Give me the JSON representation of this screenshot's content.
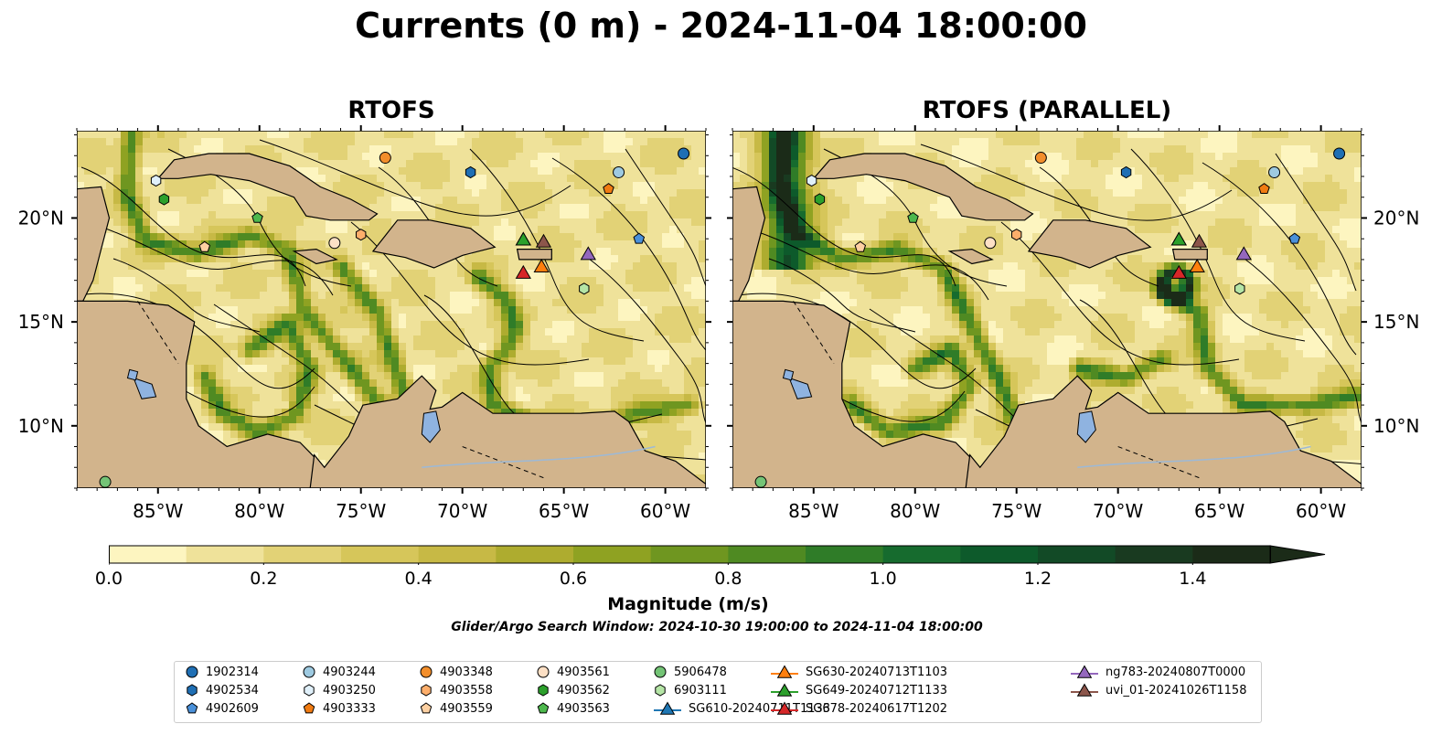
{
  "title": "Currents (0 m) - 2024-11-04 18:00:00",
  "panels": [
    {
      "id": "left",
      "title": "RTOFS"
    },
    {
      "id": "right",
      "title": "RTOFS (PARALLEL)"
    }
  ],
  "map": {
    "lon_range": [
      -89,
      -58
    ],
    "lat_range": [
      7,
      24.2
    ],
    "lon_ticks": [
      "85°W",
      "80°W",
      "75°W",
      "70°W",
      "65°W",
      "60°W"
    ],
    "lat_ticks": [
      "20°N",
      "15°N",
      "10°N"
    ],
    "colors": {
      "land": "#d2b48c",
      "lake": "#8fb3e0",
      "coast": "#000000"
    }
  },
  "colorbar": {
    "label": "Magnitude (m/s)",
    "ticks": [
      "0.0",
      "0.2",
      "0.4",
      "0.6",
      "0.8",
      "1.0",
      "1.2",
      "1.4"
    ],
    "range": [
      0,
      1.5
    ],
    "extend": "max",
    "colors": [
      "#fdf5c0",
      "#efe29a",
      "#e2d276",
      "#d6c65a",
      "#c7b945",
      "#aeac2f",
      "#8fa222",
      "#6f9620",
      "#4f8a22",
      "#2f7c28",
      "#166b2e",
      "#0d5a2b",
      "#124a26",
      "#193a20",
      "#1b2b18"
    ]
  },
  "search_window": "Glider/Argo Search Window: 2024-10-30 19:00:00 to 2024-11-04 18:00:00",
  "legend": [
    {
      "label": "1902314",
      "marker": "circle",
      "color": "#1f6fb4"
    },
    {
      "label": "4902534",
      "marker": "hexagon",
      "color": "#1f6fb4"
    },
    {
      "label": "4902609",
      "marker": "pentagon",
      "color": "#4a90d9"
    },
    {
      "label": "4903244",
      "marker": "circle",
      "color": "#9ecae1"
    },
    {
      "label": "4903250",
      "marker": "hexagon",
      "color": "#e0f0fa"
    },
    {
      "label": "4903333",
      "marker": "pentagon",
      "color": "#f07b12"
    },
    {
      "label": "4903348",
      "marker": "circle",
      "color": "#f28e2b"
    },
    {
      "label": "4903558",
      "marker": "hexagon",
      "color": "#fdae6b"
    },
    {
      "label": "4903559",
      "marker": "pentagon",
      "color": "#fdd0a2"
    },
    {
      "label": "4903561",
      "marker": "circle",
      "color": "#fde0c5"
    },
    {
      "label": "4903562",
      "marker": "hexagon",
      "color": "#2ca02c"
    },
    {
      "label": "4903563",
      "marker": "pentagon",
      "color": "#4db84d"
    },
    {
      "label": "5906478",
      "marker": "circle",
      "color": "#74c476"
    },
    {
      "label": "6903111",
      "marker": "hexagon",
      "color": "#b5e5a6"
    },
    {
      "label": "SG610-20240711T1133",
      "marker": "triangle",
      "color": "#1f77b4"
    },
    {
      "label": "SG630-20240713T1103",
      "marker": "triangle",
      "color": "#ff7f0e"
    },
    {
      "label": "SG649-20240712T1133",
      "marker": "triangle",
      "color": "#2ca02c"
    },
    {
      "label": "SG678-20240617T1202",
      "marker": "triangle",
      "color": "#d62728"
    },
    {
      "label": "ng783-20240807T0000",
      "marker": "triangle",
      "color": "#9467bd"
    },
    {
      "label": "uvi_01-20241026T1158",
      "marker": "triangle",
      "color": "#8c564b"
    }
  ],
  "platform_positions": [
    {
      "label": "1902314",
      "lon": -59.1,
      "lat": 23.1
    },
    {
      "label": "4902534",
      "lon": -69.6,
      "lat": 22.2
    },
    {
      "label": "4902609",
      "lon": -61.3,
      "lat": 19.0
    },
    {
      "label": "4903244",
      "lon": -62.3,
      "lat": 22.2
    },
    {
      "label": "4903250",
      "lon": -85.1,
      "lat": 21.8
    },
    {
      "label": "4903333",
      "lon": -62.8,
      "lat": 21.4
    },
    {
      "label": "4903348",
      "lon": -73.8,
      "lat": 22.9
    },
    {
      "label": "4903558",
      "lon": -75.0,
      "lat": 19.2
    },
    {
      "label": "4903559",
      "lon": -82.7,
      "lat": 18.6
    },
    {
      "label": "4903561",
      "lon": -76.3,
      "lat": 18.8
    },
    {
      "label": "4903562",
      "lon": -84.7,
      "lat": 20.9
    },
    {
      "label": "4903563",
      "lon": -80.1,
      "lat": 20.0
    },
    {
      "label": "5906478",
      "lon": -87.6,
      "lat": 7.3
    },
    {
      "label": "6903111",
      "lon": -64.0,
      "lat": 16.6
    },
    {
      "label": "SG610-20240711T1133",
      "lon": -67.0,
      "lat": 18.9
    },
    {
      "label": "SG630-20240713T1103",
      "lon": -66.1,
      "lat": 17.6
    },
    {
      "label": "SG649-20240712T1133",
      "lon": -67.0,
      "lat": 18.9
    },
    {
      "label": "SG678-20240617T1202",
      "lon": -67.0,
      "lat": 17.3
    },
    {
      "label": "ng783-20240807T0000",
      "lon": -63.8,
      "lat": 18.2
    },
    {
      "label": "uvi_01-20241026T1158",
      "lon": -66.0,
      "lat": 18.8
    }
  ]
}
